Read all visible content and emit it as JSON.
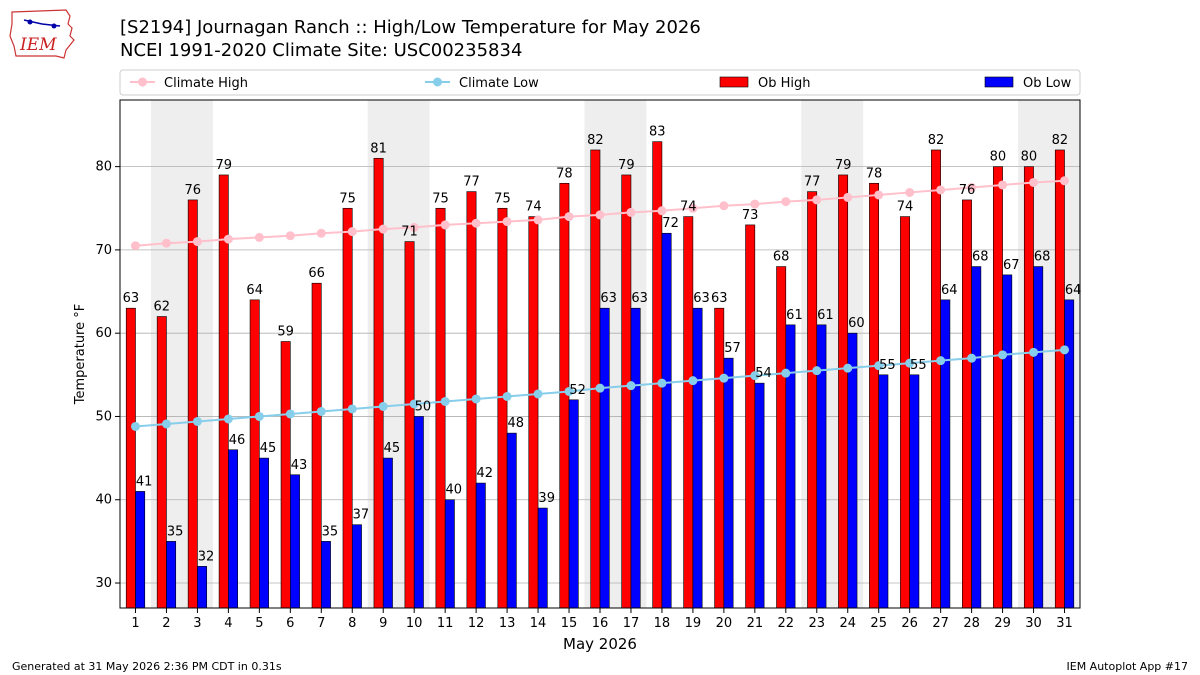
{
  "header": {
    "title_line1": "[S2194] Journagan Ranch :: High/Low Temperature for May 2026",
    "title_line2": "NCEI 1991-2020 Climate Site: USC00235834",
    "logo_text": "IEM"
  },
  "footer": {
    "left": "Generated at 31 May 2026 2:36 PM CDT in 0.31s",
    "right": "IEM Autoplot App #17"
  },
  "colors": {
    "ob_high": "#ff0000",
    "ob_low": "#0000ff",
    "climate_high": "#ffc0cb",
    "climate_low": "#87ceeb",
    "weekend_shade": "#eeeeee",
    "grid": "#b0b0b0"
  },
  "chart_data": {
    "type": "bar",
    "xlabel": "May 2026",
    "ylabel": "Temperature °F",
    "ylim": [
      27,
      88
    ],
    "yticks": [
      30,
      40,
      50,
      60,
      70,
      80
    ],
    "grid": true,
    "legend_position": "top",
    "categories": [
      "1",
      "2",
      "3",
      "4",
      "5",
      "6",
      "7",
      "8",
      "9",
      "10",
      "11",
      "12",
      "13",
      "14",
      "15",
      "16",
      "17",
      "18",
      "19",
      "20",
      "21",
      "22",
      "23",
      "24",
      "25",
      "26",
      "27",
      "28",
      "29",
      "30",
      "31"
    ],
    "shaded_weekends": [
      [
        2,
        3
      ],
      [
        9,
        10
      ],
      [
        16,
        17
      ],
      [
        23,
        24
      ],
      [
        30,
        31
      ]
    ],
    "series": [
      {
        "name": "Ob High",
        "kind": "bar",
        "values": [
          63,
          62,
          76,
          79,
          64,
          59,
          66,
          75,
          81,
          71,
          75,
          77,
          75,
          74,
          78,
          82,
          79,
          83,
          74,
          63,
          73,
          68,
          77,
          79,
          78,
          74,
          82,
          76,
          80,
          80,
          82
        ]
      },
      {
        "name": "Ob Low",
        "kind": "bar",
        "values": [
          41,
          35,
          32,
          46,
          45,
          43,
          35,
          37,
          45,
          50,
          40,
          42,
          48,
          39,
          52,
          63,
          63,
          72,
          63,
          57,
          54,
          61,
          61,
          60,
          55,
          55,
          64,
          68,
          67,
          68,
          64
        ]
      },
      {
        "name": "Climate High",
        "kind": "line",
        "values": [
          70.5,
          70.8,
          71.0,
          71.3,
          71.5,
          71.7,
          72.0,
          72.2,
          72.5,
          72.7,
          73.0,
          73.2,
          73.4,
          73.6,
          74.0,
          74.2,
          74.5,
          74.7,
          75.0,
          75.3,
          75.5,
          75.8,
          76.0,
          76.3,
          76.6,
          76.9,
          77.2,
          77.5,
          77.8,
          78.1,
          78.3
        ]
      },
      {
        "name": "Climate Low",
        "kind": "line",
        "values": [
          48.8,
          49.1,
          49.4,
          49.7,
          50.0,
          50.3,
          50.6,
          50.9,
          51.2,
          51.5,
          51.8,
          52.1,
          52.4,
          52.7,
          53.0,
          53.4,
          53.7,
          54.0,
          54.3,
          54.6,
          54.9,
          55.2,
          55.5,
          55.8,
          56.1,
          56.4,
          56.7,
          57.0,
          57.4,
          57.7,
          58.0
        ]
      }
    ],
    "legend_order": [
      "Climate High",
      "Climate Low",
      "Ob High",
      "Ob Low"
    ]
  }
}
